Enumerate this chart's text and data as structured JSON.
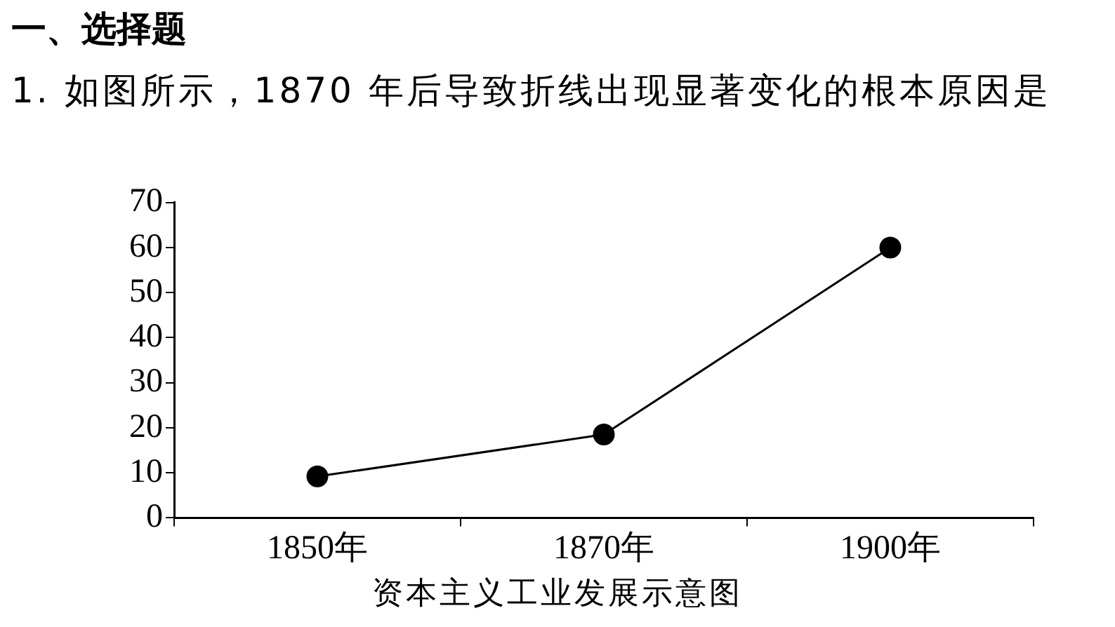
{
  "chart_data": {
    "type": "line",
    "title": "一、选择题",
    "subtitle": "1. 如图所示，1870 年后导致折线出现显著变化的根本原因是",
    "xlabel": "资本主义工业发展示意图",
    "categories": [
      "1850年",
      "1870年",
      "1900年"
    ],
    "series": [
      {
        "color": "#000000",
        "values": [
          9.2,
          18.5,
          60
        ]
      }
    ],
    "ylim": [
      0,
      70
    ],
    "yticks": [
      0,
      10,
      20,
      30,
      40,
      50,
      60,
      70
    ],
    "grid": false,
    "legend": false,
    "marker": "circle",
    "line_style": "solid"
  }
}
